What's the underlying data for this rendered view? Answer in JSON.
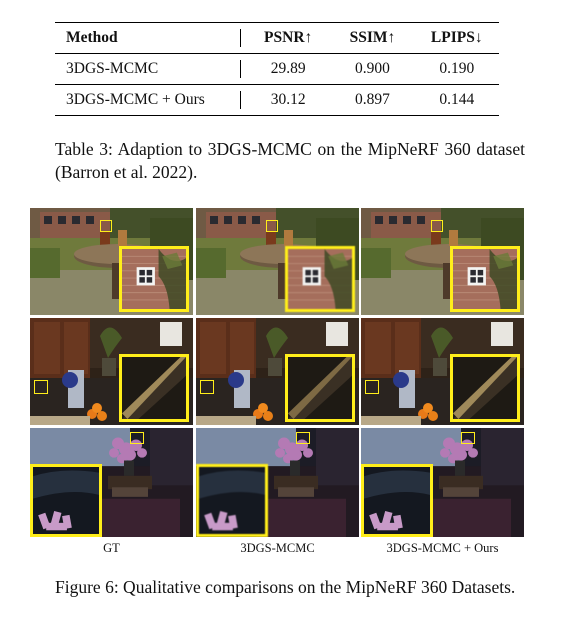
{
  "table": {
    "headers": [
      "Method",
      "PSNR↑",
      "SSIM↑",
      "LPIPS↓"
    ],
    "rows": [
      {
        "method": "3DGS-MCMC",
        "psnr": "29.89",
        "ssim": "0.900",
        "lpips": "0.190"
      },
      {
        "method": "3DGS-MCMC + Ours",
        "psnr": "30.12",
        "ssim": "0.897",
        "lpips": "0.144"
      }
    ]
  },
  "table_caption": "Table 3: Adaption to 3DGS-MCMC on the MipNeRF 360 dataset (Barron et al. 2022).",
  "figure": {
    "column_labels": [
      "GT",
      "3DGS-MCMC",
      "3DGS-MCMC + Ours"
    ],
    "rows": [
      "garden",
      "kitchen",
      "room"
    ],
    "highlight_color": "#ffee1a"
  },
  "figure_caption": "Figure 6: Qualitative comparisons on the MipNeRF 360 Datasets."
}
